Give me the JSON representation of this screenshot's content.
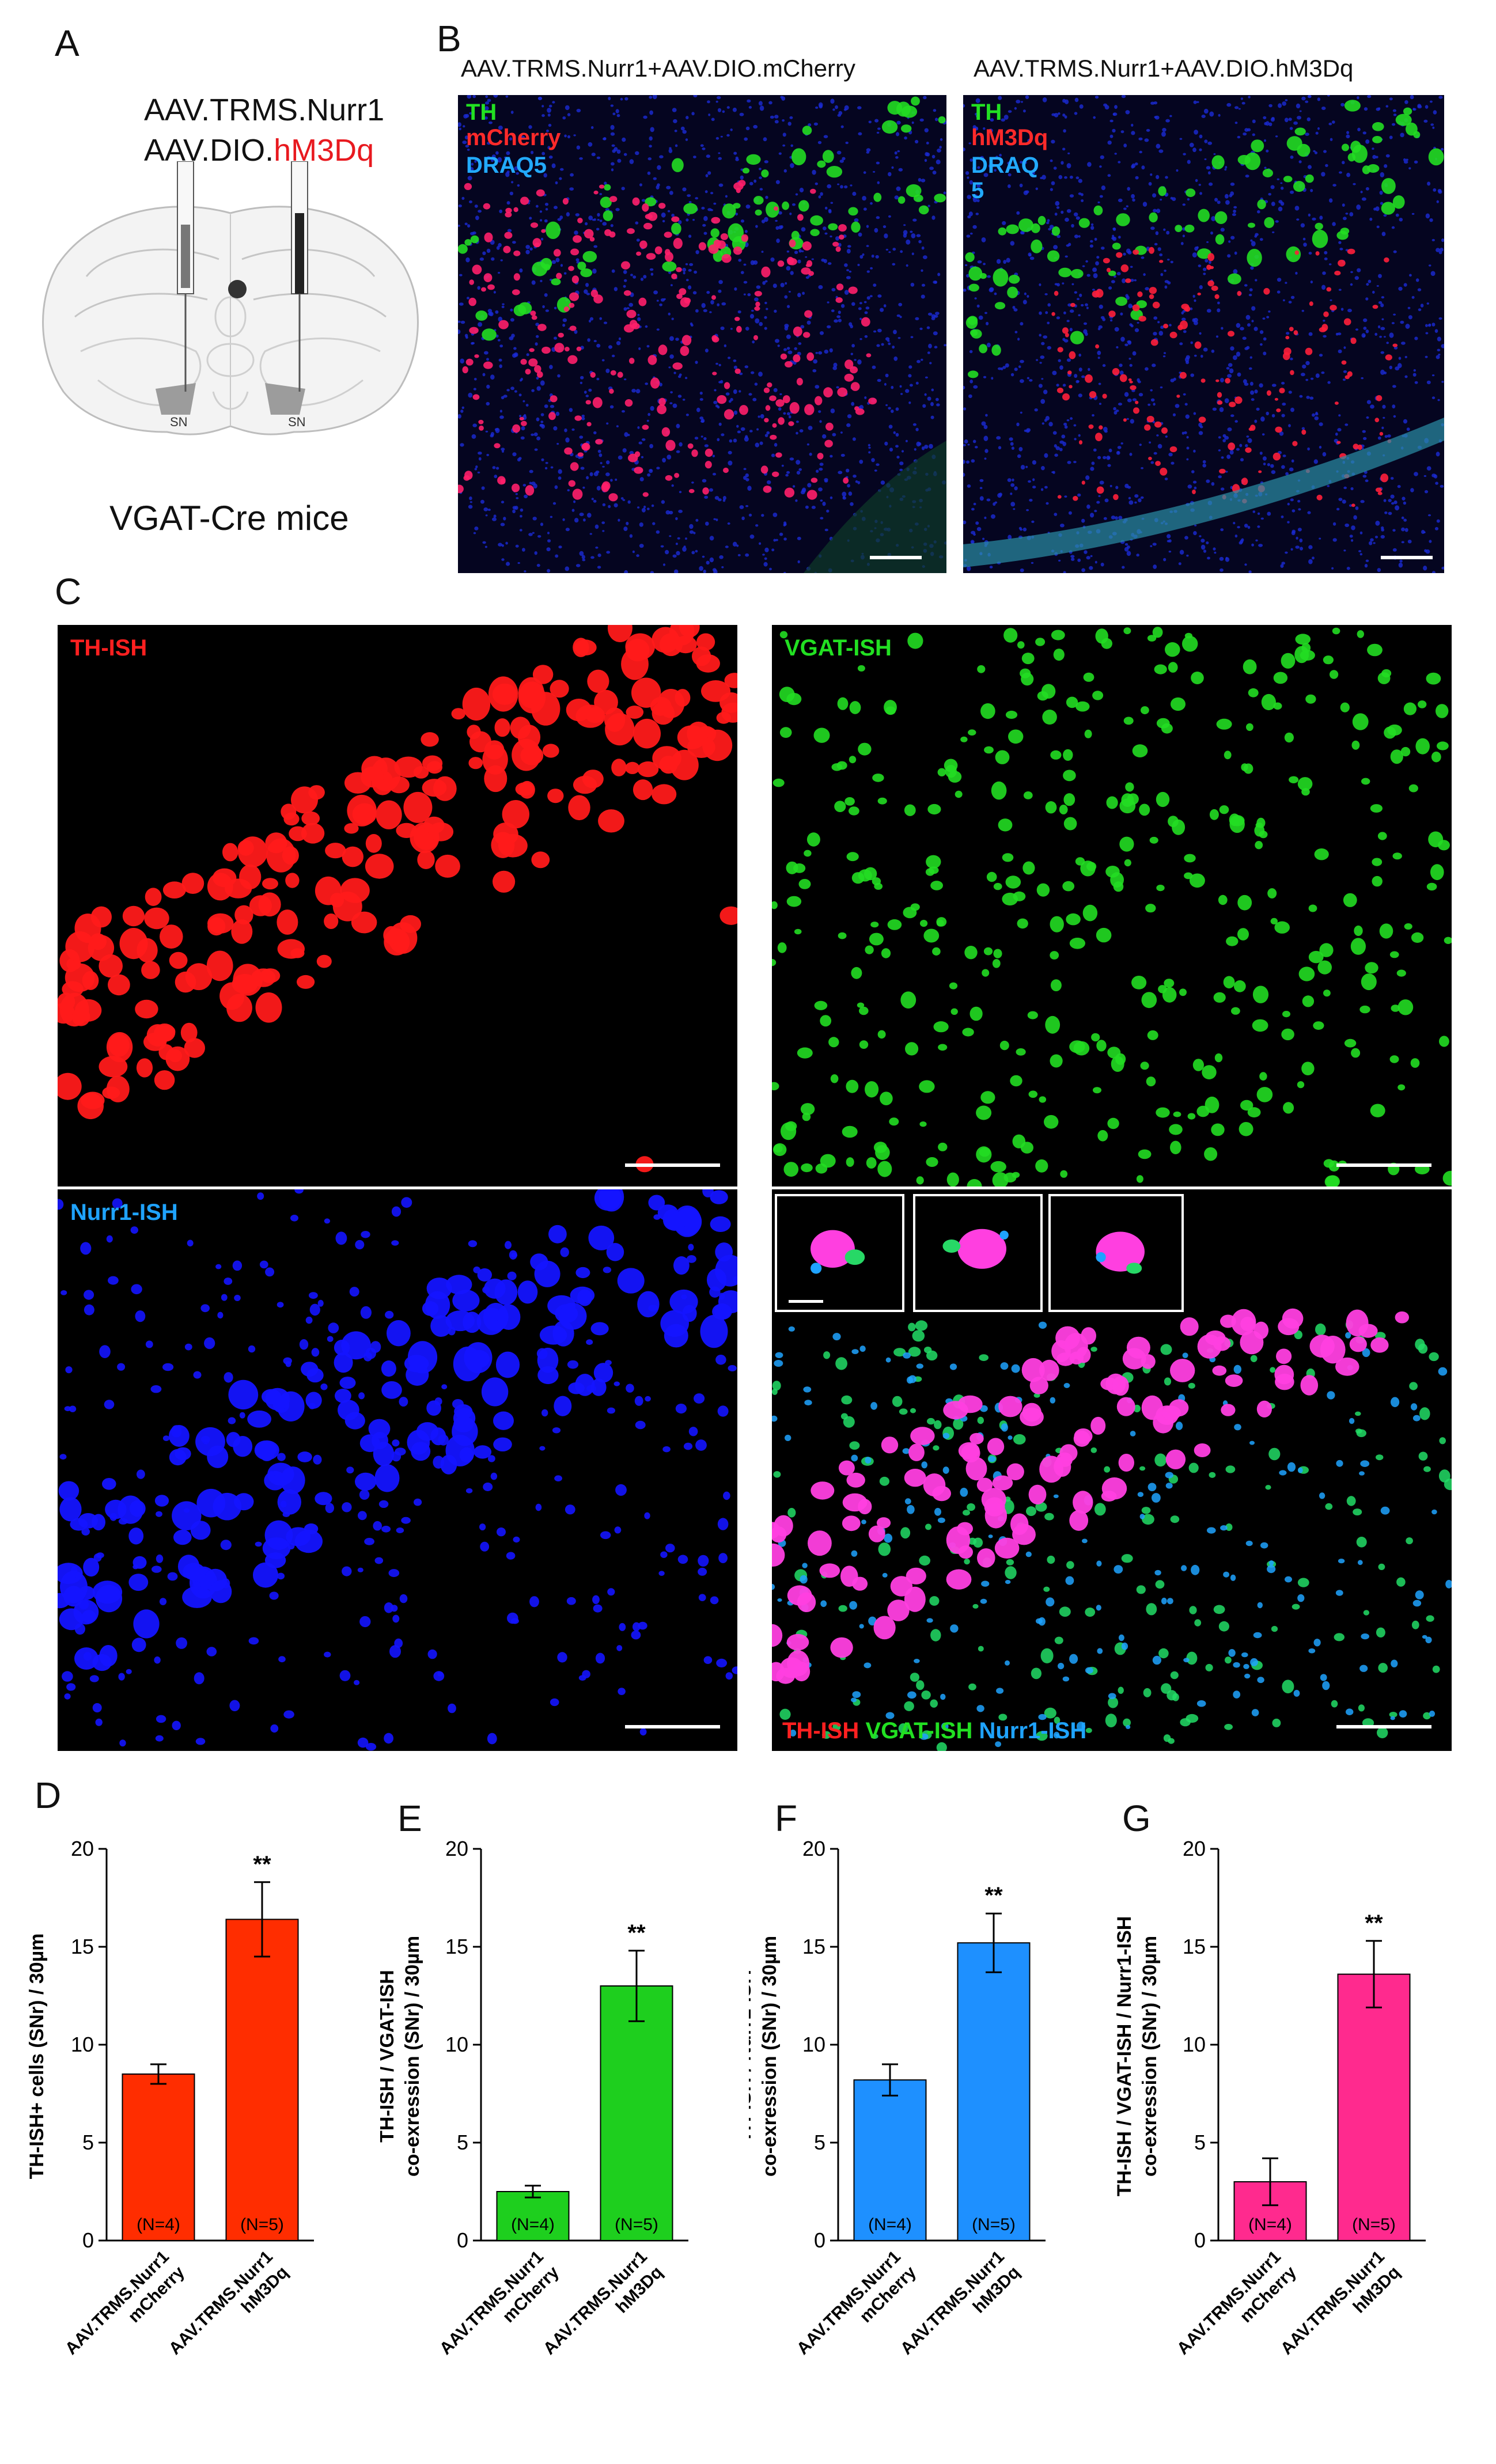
{
  "panel_letters": {
    "a": "A",
    "b": "B",
    "c": "C",
    "d": "D",
    "e": "E",
    "f": "F",
    "g": "G"
  },
  "panelA": {
    "line1": "AAV.TRMS.Nurr1",
    "line2_prefix": "AAV.DIO.",
    "line2_highlight": "hM3Dq",
    "sn_left": "SN",
    "sn_right": "SN",
    "mice": "VGAT-Cre mice",
    "highlight_color": "#e8191f"
  },
  "panelB": {
    "left_title": "AAV.TRMS.Nurr1+AAV.DIO.mCherry",
    "right_title": "AAV.TRMS.Nurr1+AAV.DIO.hM3Dq",
    "left_labels": [
      "TH",
      "mCherry",
      "DRAQ5"
    ],
    "right_labels": [
      "TH",
      "hM3Dq",
      "DRAQ",
      "5"
    ]
  },
  "panelC": {
    "th_label": "TH-ISH",
    "vgat_label": "VGAT-ISH",
    "nurr1_label": "Nurr1-ISH",
    "merge_labels": [
      "TH-ISH",
      "VGAT-ISH",
      "Nurr1-ISH"
    ]
  },
  "charts": {
    "D": {
      "ylabel": "TH-ISH+ cells (SNr) / 30µm"
    },
    "E": {
      "ylabel1": "TH-ISH / VGAT-ISH",
      "ylabel2": "co-exression (SNr) / 30µm"
    },
    "F": {
      "ylabel1": "TH-ISH / Nurr1-ISH",
      "ylabel2": "co-exression (SNr) / 30µm"
    },
    "G": {
      "ylabel1": "TH-ISH / VGAT-ISH / Nurr1-ISH",
      "ylabel2": "co-exression (SNr) / 30µm"
    }
  },
  "chart_data": [
    {
      "id": "D",
      "type": "bar",
      "categories": [
        "AAV.TRMS.Nurr1 mCherry",
        "AAV.TRMS.Nurr1 hM3Dq"
      ],
      "values": [
        8.5,
        16.4
      ],
      "errors": [
        0.5,
        1.9
      ],
      "n_labels": [
        "(N=4)",
        "(N=5)"
      ],
      "significance": [
        "",
        "**"
      ],
      "ylim": [
        0,
        20
      ],
      "yticks": [
        0,
        5,
        10,
        15,
        20
      ],
      "color": "#ff2d00"
    },
    {
      "id": "E",
      "type": "bar",
      "categories": [
        "AAV.TRMS.Nurr1 mCherry",
        "AAV.TRMS.Nurr1 hM3Dq"
      ],
      "values": [
        2.5,
        13.0
      ],
      "errors": [
        0.3,
        1.8
      ],
      "n_labels": [
        "(N=4)",
        "(N=5)"
      ],
      "significance": [
        "",
        "**"
      ],
      "ylim": [
        0,
        20
      ],
      "yticks": [
        0,
        5,
        10,
        15,
        20
      ],
      "color": "#1ecf1e"
    },
    {
      "id": "F",
      "type": "bar",
      "categories": [
        "AAV.TRMS.Nurr1 mCherry",
        "AAV.TRMS.Nurr1 hM3Dq"
      ],
      "values": [
        8.2,
        15.2
      ],
      "errors": [
        0.8,
        1.5
      ],
      "n_labels": [
        "(N=4)",
        "(N=5)"
      ],
      "significance": [
        "",
        "**"
      ],
      "ylim": [
        0,
        20
      ],
      "yticks": [
        0,
        5,
        10,
        15,
        20
      ],
      "color": "#1e90ff"
    },
    {
      "id": "G",
      "type": "bar",
      "categories": [
        "AAV.TRMS.Nurr1 mCherry",
        "AAV.TRMS.Nurr1 hM3Dq"
      ],
      "values": [
        3.0,
        13.6
      ],
      "errors": [
        1.2,
        1.7
      ],
      "n_labels": [
        "(N=4)",
        "(N=5)"
      ],
      "significance": [
        "",
        "**"
      ],
      "ylim": [
        0,
        20
      ],
      "yticks": [
        0,
        5,
        10,
        15,
        20
      ],
      "color": "#ff2a8e"
    }
  ]
}
